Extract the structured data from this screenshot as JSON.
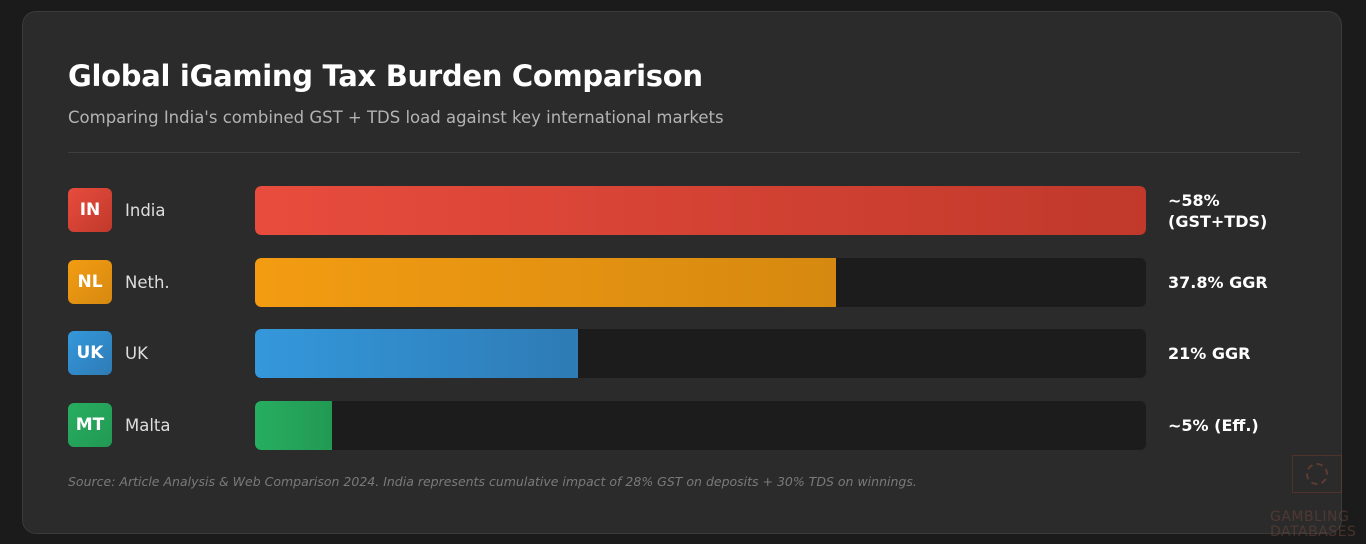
{
  "title": "Global iGaming Tax Burden Comparison",
  "subtitle": "Comparing India's combined GST + TDS load against key international markets",
  "source_note": "Source: Article Analysis & Web Comparison 2024. India represents cumulative impact of 28% GST on deposits + 30% TDS on winnings.",
  "watermark": {
    "text": "GAMBLING\nDATABASES"
  },
  "chart_data": {
    "type": "bar",
    "orientation": "horizontal",
    "title": "Global iGaming Tax Burden Comparison",
    "subtitle": "Comparing India's combined GST + TDS load against key international markets",
    "xlim": [
      0,
      58
    ],
    "grid": false,
    "categories": [
      "India",
      "Neth.",
      "UK",
      "Malta"
    ],
    "codes": [
      "IN",
      "NL",
      "UK",
      "MT"
    ],
    "values": [
      58,
      37.8,
      21,
      5
    ],
    "value_labels": [
      "~58%\n(GST+TDS)",
      "37.8% GGR",
      "21% GGR",
      "~5% (Eff.)"
    ],
    "colors": [
      [
        "#e84c3d",
        "#c0392b"
      ],
      [
        "#f39c12",
        "#d68910"
      ],
      [
        "#3498db",
        "#2e7bb5"
      ],
      [
        "#27ae60",
        "#229954"
      ]
    ]
  }
}
